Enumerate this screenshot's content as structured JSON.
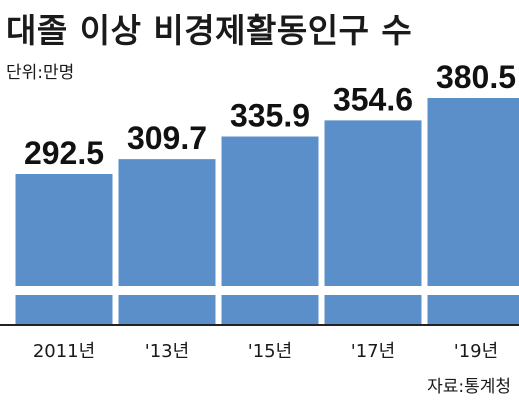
{
  "chart_data": {
    "type": "bar",
    "title": "대졸 이상 비경제활동인구 수",
    "unit_label": "단위:만명",
    "source": "자료:통계청",
    "categories": [
      "2011년",
      "'13년",
      "'15년",
      "'17년",
      "'19년"
    ],
    "values": [
      292.5,
      309.7,
      335.9,
      354.6,
      380.5
    ],
    "value_labels": [
      "292.5",
      "309.7",
      "335.9",
      "354.6",
      "380.5"
    ],
    "axis_break": true,
    "bar_color": "#5b8fc9",
    "legend": "none",
    "grid": false
  }
}
